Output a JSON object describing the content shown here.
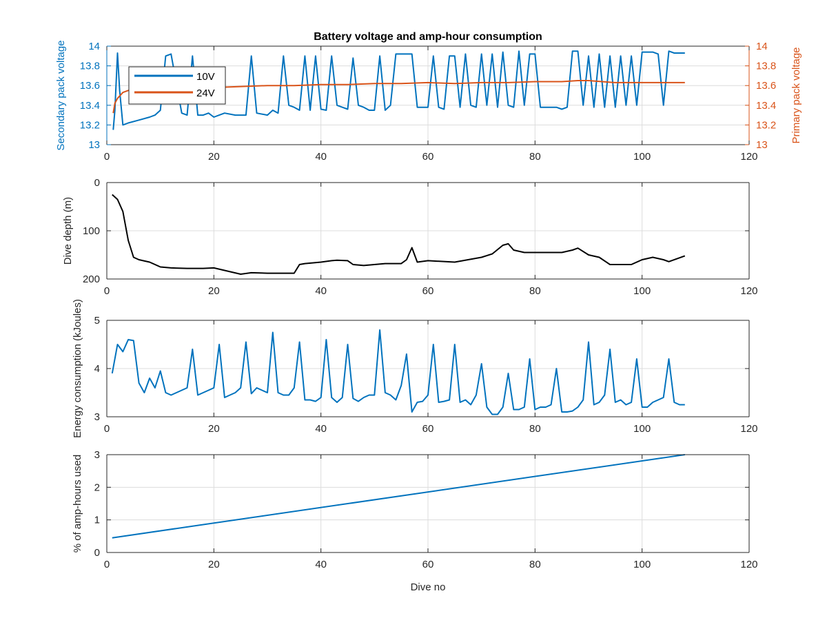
{
  "figure": {
    "title": "Battery voltage and amp-hour consumption"
  },
  "colors": {
    "blue": "#0072BD",
    "orange": "#D95319",
    "black": "#000000",
    "grid": "#dcdcdc",
    "axis": "#262626"
  },
  "legend": {
    "items": [
      {
        "label": "10V",
        "color": "#0072BD"
      },
      {
        "label": "24V",
        "color": "#D95319"
      }
    ],
    "placement": "top-left"
  },
  "chart_data": [
    {
      "type": "line",
      "title": "Battery voltage and amp-hour consumption",
      "xlabel": "",
      "xlim": [
        0,
        120
      ],
      "xticks": [
        0,
        20,
        40,
        60,
        80,
        100,
        120
      ],
      "ylabel_left": "Secondary pack voltage",
      "ylabel_right": "Primary pack voltage",
      "ylim_left": [
        13,
        14
      ],
      "ylim_right": [
        13,
        14
      ],
      "yticks": [
        13,
        13.2,
        13.4,
        13.6,
        13.8,
        14
      ],
      "ytick_labels": [
        "13",
        "13.2",
        "13.4",
        "13.6",
        "13.8",
        "14"
      ],
      "grid": true,
      "series": [
        {
          "name": "10V",
          "axis": "left",
          "color": "#0072BD",
          "x": [
            1.2,
            1.5,
            2,
            2.4,
            3,
            4,
            6,
            8,
            9,
            10,
            11,
            12,
            14,
            15,
            16,
            17,
            18,
            19,
            20,
            21,
            22,
            24,
            25,
            26,
            27,
            28,
            30,
            31,
            32,
            33,
            34,
            35,
            36,
            37,
            38,
            39,
            40,
            41,
            42,
            43,
            44,
            45,
            46,
            47,
            48,
            49,
            50,
            51,
            52,
            53,
            54,
            55,
            56,
            57,
            58,
            59,
            60,
            61,
            62,
            63,
            64,
            65,
            66,
            67,
            68,
            69,
            70,
            71,
            72,
            73,
            74,
            75,
            76,
            77,
            78,
            79,
            80,
            81,
            82,
            83,
            84,
            85,
            86,
            87,
            88,
            89,
            90,
            91,
            92,
            93,
            94,
            95,
            96,
            97,
            98,
            99,
            100,
            101,
            102,
            103,
            104,
            105,
            106,
            107,
            108
          ],
          "y": [
            13.15,
            13.35,
            13.93,
            13.55,
            13.2,
            13.22,
            13.25,
            13.28,
            13.3,
            13.35,
            13.9,
            13.92,
            13.32,
            13.3,
            13.9,
            13.3,
            13.3,
            13.32,
            13.28,
            13.3,
            13.32,
            13.3,
            13.3,
            13.3,
            13.9,
            13.32,
            13.3,
            13.35,
            13.32,
            13.9,
            13.4,
            13.38,
            13.35,
            13.9,
            13.35,
            13.9,
            13.36,
            13.35,
            13.9,
            13.4,
            13.38,
            13.36,
            13.88,
            13.4,
            13.38,
            13.35,
            13.35,
            13.9,
            13.35,
            13.4,
            13.92,
            13.92,
            13.92,
            13.92,
            13.38,
            13.38,
            13.38,
            13.9,
            13.38,
            13.36,
            13.9,
            13.9,
            13.38,
            13.92,
            13.4,
            13.38,
            13.92,
            13.4,
            13.92,
            13.38,
            13.94,
            13.4,
            13.38,
            13.95,
            13.4,
            13.92,
            13.92,
            13.38,
            13.38,
            13.38,
            13.38,
            13.36,
            13.38,
            13.95,
            13.95,
            13.4,
            13.9,
            13.38,
            13.92,
            13.38,
            13.9,
            13.38,
            13.9,
            13.4,
            13.9,
            13.4,
            13.94,
            13.94,
            13.94,
            13.92,
            13.4,
            13.95,
            13.93,
            13.93,
            13.93
          ],
          "stroke_width": 2
        },
        {
          "name": "24V",
          "axis": "right",
          "color": "#D95319",
          "x": [
            1.2,
            1.5,
            2,
            3,
            4,
            6,
            8,
            10,
            12,
            16,
            20,
            25,
            30,
            35,
            40,
            45,
            50,
            55,
            60,
            65,
            70,
            75,
            80,
            85,
            88,
            90,
            95,
            100,
            105,
            108
          ],
          "y": [
            13.32,
            13.42,
            13.47,
            13.53,
            13.55,
            13.56,
            13.57,
            13.57,
            13.58,
            13.58,
            13.58,
            13.59,
            13.6,
            13.6,
            13.61,
            13.61,
            13.62,
            13.62,
            13.63,
            13.62,
            13.63,
            13.63,
            13.64,
            13.64,
            13.65,
            13.65,
            13.63,
            13.63,
            13.63,
            13.63
          ],
          "stroke_width": 2
        }
      ]
    },
    {
      "type": "line",
      "title": "",
      "xlabel": "",
      "ylabel": "Dive depth (m)",
      "xlim": [
        0,
        120
      ],
      "xticks": [
        0,
        20,
        40,
        60,
        80,
        100,
        120
      ],
      "ylim": [
        0,
        200
      ],
      "y_reversed": true,
      "yticks": [
        0,
        100,
        200
      ],
      "ytick_labels": [
        "0",
        "100",
        "200"
      ],
      "grid": true,
      "series": [
        {
          "color": "#000000",
          "x": [
            1,
            2,
            3,
            4,
            5,
            6,
            8,
            10,
            12,
            15,
            18,
            20,
            25,
            27,
            30,
            35,
            36,
            37,
            40,
            42,
            43,
            45,
            46,
            48,
            50,
            52,
            55,
            56,
            57,
            58,
            60,
            65,
            70,
            72,
            74,
            75,
            76,
            78,
            80,
            85,
            87,
            88,
            90,
            92,
            94,
            96,
            98,
            100,
            102,
            104,
            105,
            108
          ],
          "y": [
            25,
            35,
            60,
            120,
            155,
            160,
            165,
            175,
            177,
            178,
            178,
            177,
            190,
            187,
            188,
            188,
            170,
            168,
            165,
            162,
            161,
            162,
            170,
            172,
            170,
            168,
            168,
            160,
            135,
            165,
            162,
            165,
            155,
            148,
            130,
            127,
            140,
            145,
            145,
            145,
            140,
            136,
            150,
            155,
            170,
            170,
            170,
            160,
            155,
            160,
            164,
            152
          ],
          "stroke_width": 2
        }
      ]
    },
    {
      "type": "line",
      "title": "",
      "xlabel": "",
      "ylabel": "Energy consumption (kJoules)",
      "xlim": [
        0,
        120
      ],
      "xticks": [
        0,
        20,
        40,
        60,
        80,
        100,
        120
      ],
      "ylim": [
        3,
        5
      ],
      "yticks": [
        3,
        4,
        5
      ],
      "ytick_labels": [
        "3",
        "4",
        "5"
      ],
      "grid": true,
      "series": [
        {
          "color": "#0072BD",
          "x": [
            1,
            2,
            3,
            4,
            5,
            6,
            7,
            8,
            9,
            10,
            11,
            12,
            13,
            14,
            15,
            16,
            17,
            18,
            19,
            20,
            21,
            22,
            23,
            24,
            25,
            26,
            27,
            28,
            29,
            30,
            31,
            32,
            33,
            34,
            35,
            36,
            37,
            38,
            39,
            40,
            41,
            42,
            43,
            44,
            45,
            46,
            47,
            48,
            49,
            50,
            51,
            52,
            53,
            54,
            55,
            56,
            57,
            58,
            59,
            60,
            61,
            62,
            63,
            64,
            65,
            66,
            67,
            68,
            69,
            70,
            71,
            72,
            73,
            74,
            75,
            76,
            77,
            78,
            79,
            80,
            81,
            82,
            83,
            84,
            85,
            86,
            87,
            88,
            89,
            90,
            91,
            92,
            93,
            94,
            95,
            96,
            97,
            98,
            99,
            100,
            101,
            102,
            103,
            104,
            105,
            106,
            107,
            108
          ],
          "y": [
            3.9,
            4.5,
            4.35,
            4.6,
            4.58,
            3.7,
            3.5,
            3.8,
            3.6,
            3.95,
            3.5,
            3.45,
            3.5,
            3.55,
            3.6,
            4.4,
            3.45,
            3.5,
            3.55,
            3.6,
            4.5,
            3.4,
            3.45,
            3.5,
            3.6,
            4.55,
            3.48,
            3.6,
            3.55,
            3.5,
            4.75,
            3.5,
            3.45,
            3.45,
            3.6,
            4.55,
            3.35,
            3.35,
            3.32,
            3.4,
            4.6,
            3.4,
            3.3,
            3.4,
            4.5,
            3.38,
            3.32,
            3.4,
            3.45,
            3.45,
            4.8,
            3.5,
            3.45,
            3.35,
            3.65,
            4.3,
            3.1,
            3.3,
            3.32,
            3.45,
            4.5,
            3.3,
            3.32,
            3.35,
            4.5,
            3.3,
            3.35,
            3.25,
            3.45,
            4.1,
            3.2,
            3.05,
            3.05,
            3.2,
            3.9,
            3.15,
            3.15,
            3.2,
            4.2,
            3.15,
            3.2,
            3.2,
            3.25,
            4.0,
            3.1,
            3.1,
            3.12,
            3.2,
            3.35,
            4.55,
            3.25,
            3.3,
            3.45,
            4.4,
            3.3,
            3.35,
            3.25,
            3.3,
            4.2,
            3.2,
            3.2,
            3.3,
            3.35,
            3.4,
            4.2,
            3.3,
            3.25,
            3.25
          ],
          "stroke_width": 2
        }
      ]
    },
    {
      "type": "line",
      "title": "",
      "xlabel": "Dive no",
      "ylabel": "% of amp-hours used",
      "xlim": [
        0,
        120
      ],
      "xticks": [
        0,
        20,
        40,
        60,
        80,
        100,
        120
      ],
      "ylim": [
        0,
        3
      ],
      "yticks": [
        0,
        1,
        2,
        3
      ],
      "ytick_labels": [
        "0",
        "1",
        "2",
        "3"
      ],
      "grid": true,
      "series": [
        {
          "color": "#0072BD",
          "x": [
            1,
            108
          ],
          "y": [
            0.45,
            3.0
          ],
          "stroke_width": 2
        }
      ]
    }
  ]
}
